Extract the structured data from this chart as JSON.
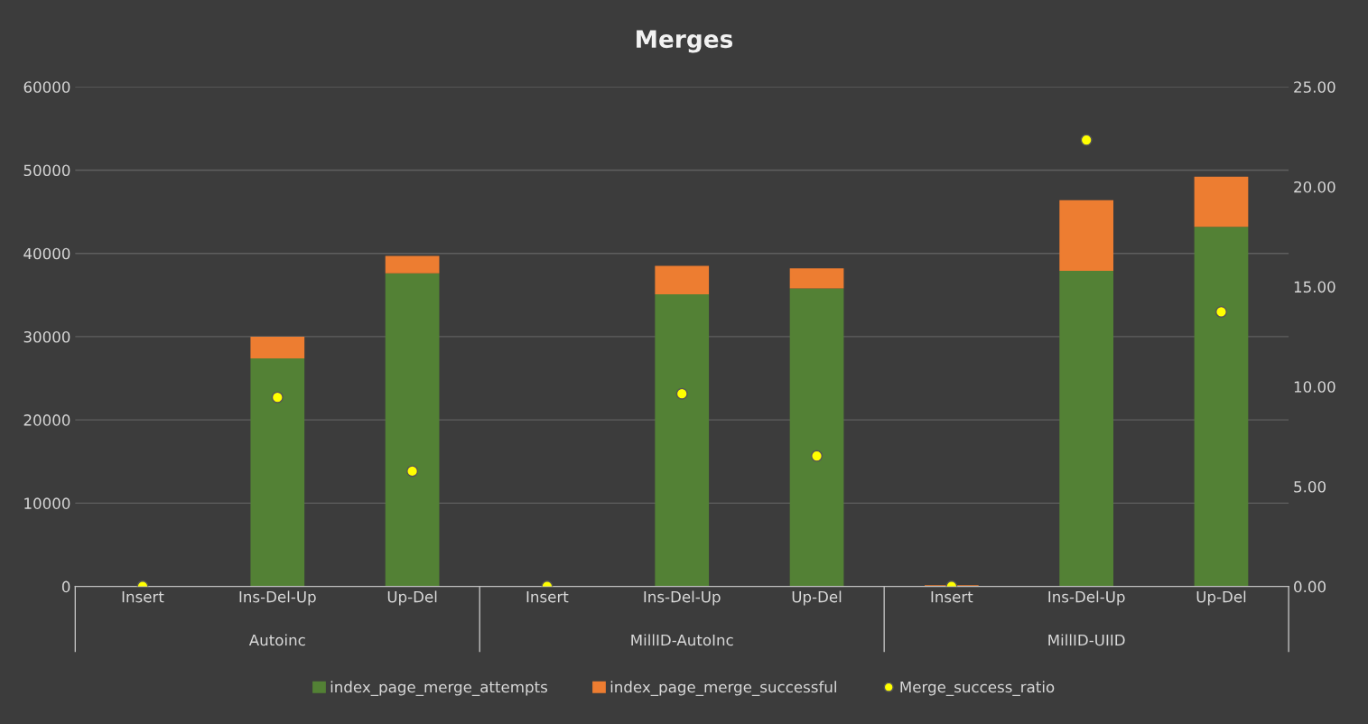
{
  "chart_data": {
    "type": "bar",
    "title": "Merges",
    "stacked": true,
    "categories": [
      "Insert",
      "Ins-Del-Up",
      "Up-Del",
      "Insert",
      "Ins-Del-Up",
      "Up-Del",
      "Insert",
      "Ins-Del-Up",
      "Up-Del"
    ],
    "annotations": [
      "Autoinc",
      "MillID-AutoInc",
      "MillID-UIID"
    ],
    "series": [
      {
        "name": "index_page_merge_attempts",
        "color": "#538135",
        "values": [
          50,
          27400,
          37600,
          50,
          35100,
          35800,
          50,
          37900,
          43200
        ]
      },
      {
        "name": "index_page_merge_successful",
        "color": "#ed7d31",
        "values": [
          0,
          2600,
          2100,
          0,
          3400,
          2400,
          100,
          8500,
          6000
        ]
      },
      {
        "name": "Merge_success_ratio",
        "type": "scatter",
        "axis": "y2",
        "color": "#ffff00",
        "marker": "circle",
        "values": [
          0,
          9.46,
          5.77,
          0,
          9.64,
          6.53,
          0,
          22.34,
          13.74
        ]
      }
    ],
    "ylim": [
      0,
      60000
    ],
    "yticks": [
      0,
      10000,
      20000,
      30000,
      40000,
      50000,
      60000
    ],
    "y2lim": [
      0,
      25
    ],
    "y2ticks": [
      {
        "value": 0,
        "label": "0.00"
      },
      {
        "value": 5,
        "label": "5.00"
      },
      {
        "value": 10,
        "label": "10.00"
      },
      {
        "value": 15,
        "label": "15.00"
      },
      {
        "value": 20,
        "label": "20.00"
      },
      {
        "value": 25,
        "label": "25.00"
      }
    ],
    "grid": "y",
    "legend": "bottom"
  }
}
